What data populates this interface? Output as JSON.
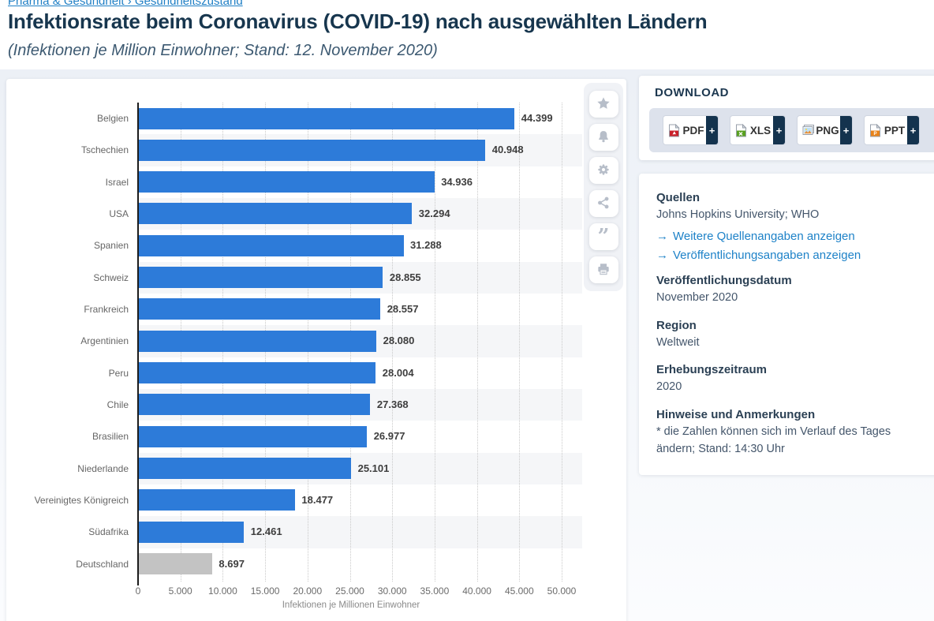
{
  "breadcrumb": "Pharma & Gesundheit › Gesundheitszustand",
  "header": {
    "title": "Infektionsrate beim Coronavirus (COVID-19) nach ausgewählten Ländern",
    "subtitle": "(Infektionen je Million Einwohner; Stand: 12. November 2020)"
  },
  "chart_data": {
    "type": "bar",
    "orientation": "horizontal",
    "title": "Infektionsrate beim Coronavirus (COVID-19) nach ausgewählten Ländern",
    "categories": [
      "Belgien",
      "Tschechien",
      "Israel",
      "USA",
      "Spanien",
      "Schweiz",
      "Frankreich",
      "Argentinien",
      "Peru",
      "Chile",
      "Brasilien",
      "Niederlande",
      "Vereinigtes Königreich",
      "Südafrika",
      "Deutschland"
    ],
    "values": [
      44399,
      40948,
      34936,
      32294,
      31288,
      28855,
      28557,
      28080,
      28004,
      27368,
      26977,
      25101,
      18477,
      12461,
      8697
    ],
    "value_labels": [
      "44.399",
      "40.948",
      "34.936",
      "32.294",
      "31.288",
      "28.855",
      "28.557",
      "28.080",
      "28.004",
      "27.368",
      "26.977",
      "25.101",
      "18.477",
      "12.461",
      "8.697"
    ],
    "xlabel": "Infektionen je Millionen Einwohner",
    "ylabel": "",
    "xlim": [
      0,
      50000
    ],
    "xtick_labels": [
      "0",
      "5.000",
      "10.000",
      "15.000",
      "20.000",
      "25.000",
      "30.000",
      "35.000",
      "40.000",
      "45.000",
      "50.000"
    ],
    "grid": "vertical-dotted",
    "row_striping": "alternate",
    "bar_color": "#2d7bd9",
    "highlight_category": "Deutschland",
    "highlight_color": "#c3c3c3",
    "legend": "none"
  },
  "toolbar": {
    "buttons": [
      {
        "icon": "star-icon"
      },
      {
        "icon": "bell-icon"
      },
      {
        "icon": "gear-icon"
      },
      {
        "icon": "share-icon"
      },
      {
        "icon": "quote-icon"
      },
      {
        "icon": "print-icon"
      }
    ]
  },
  "download": {
    "heading": "DOWNLOAD",
    "plus_label": "+",
    "formats": [
      {
        "label": "PDF",
        "icon": "pdf-file-icon",
        "color": "#c9202a"
      },
      {
        "label": "XLS",
        "icon": "xls-file-icon",
        "color": "#58a01f"
      },
      {
        "label": "PNG",
        "icon": "png-file-icon",
        "color": "#4a90d9"
      },
      {
        "label": "PPT",
        "icon": "ppt-file-icon",
        "color": "#e8831a"
      }
    ]
  },
  "sidebar": {
    "link_arrow": "→",
    "sources": {
      "heading": "Quellen",
      "value": "Johns Hopkins University; WHO",
      "links": [
        "Weitere Quellenangaben anzeigen",
        "Veröffentlichungsangaben anzeigen"
      ]
    },
    "publication_date": {
      "heading": "Veröffentlichungsdatum",
      "value": "November 2020"
    },
    "region": {
      "heading": "Region",
      "value": "Weltweit"
    },
    "survey_period": {
      "heading": "Erhebungszeitraum",
      "value": "2020"
    },
    "notes": {
      "heading": "Hinweise und Anmerkungen",
      "value": "* die Zahlen können sich im Verlauf des Tages ändern; Stand: 14:30 Uhr"
    }
  },
  "colors": {
    "bar_blue": "#2d7bd9",
    "highlight_gray": "#c3c3c3",
    "navy": "#14334e",
    "link_blue": "#1e82c8",
    "title_navy": "#17364e"
  }
}
